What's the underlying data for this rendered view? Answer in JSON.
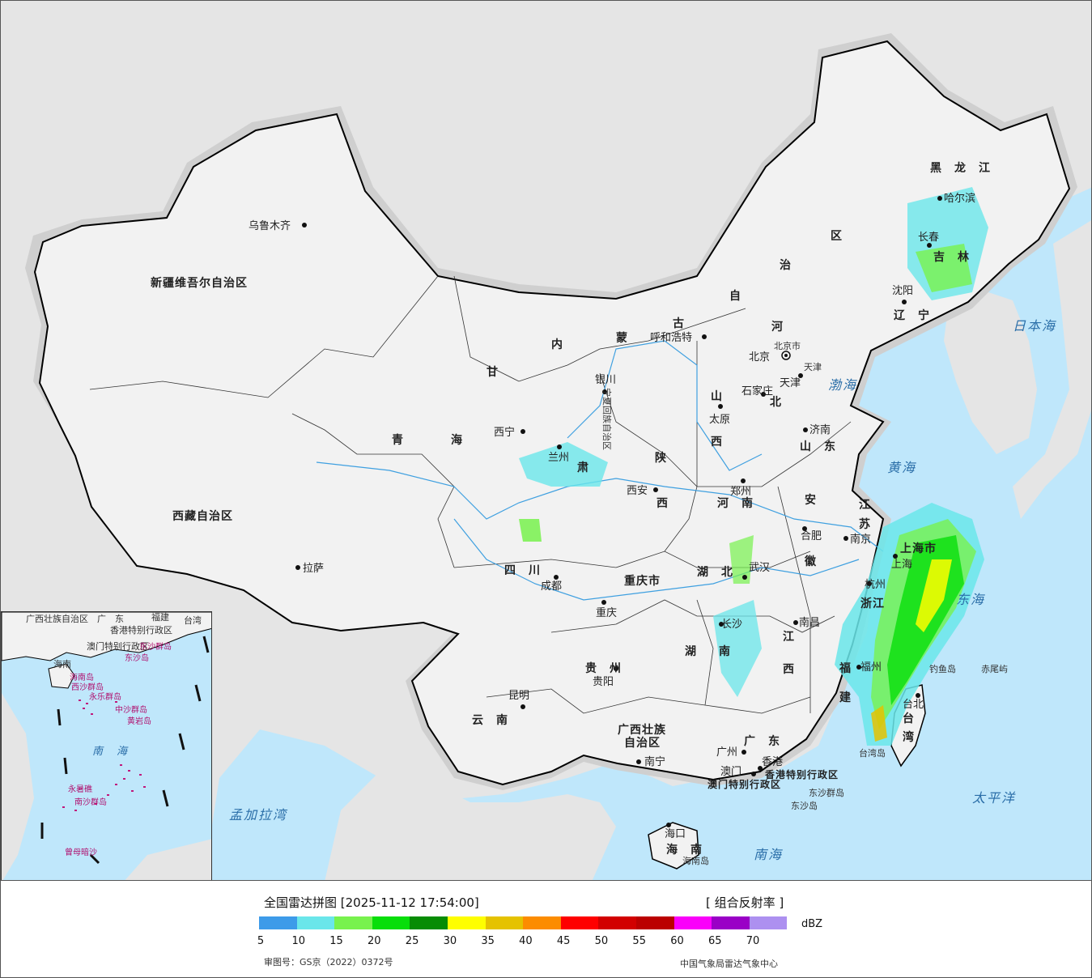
{
  "map": {
    "provinces": {
      "xinjiang": "新疆维吾尔自治区",
      "xizang": "西藏自治区",
      "qinghai_1": "青",
      "qinghai_2": "海",
      "gansu_1": "甘",
      "gansu_2": "肃",
      "neimenggu_1": "内",
      "neimenggu_2": "蒙",
      "neimenggu_3": "古",
      "neimenggu_4": "自",
      "neimenggu_5": "治",
      "neimenggu_6": "区",
      "heilongjiang": "黑　龙　江",
      "jilin": "吉　林",
      "liaoning": "辽　宁",
      "hebei_1": "河",
      "hebei_2": "北",
      "shanxi_1": "山",
      "shanxi_2": "西",
      "shandong": "山　东",
      "henan": "河　南",
      "shaanxi_1": "陕",
      "shaanxi_2": "西",
      "ningxia": "宁夏回族自治区",
      "sichuan": "四　川",
      "chongqing": "重庆市",
      "hubei": "湖　北",
      "hunan_1": "湖",
      "hunan_2": "南",
      "jiangxi_1": "江",
      "jiangxi_2": "西",
      "anhui_1": "安",
      "anhui_2": "徽",
      "jiangsu_1": "江",
      "jiangsu_2": "苏",
      "zhejiang": "浙江",
      "fujian_1": "福",
      "fujian_2": "建",
      "guizhou": "贵　州",
      "yunnan": "云　南",
      "guangxi_1": "广西壮族",
      "guangxi_2": "自治区",
      "guangdong": "广　东",
      "hainan": "海　南",
      "taiwan_1": "台",
      "taiwan_2": "湾",
      "shanghai": "上海市",
      "beijing": "北京市",
      "tianjin": "天津",
      "hongkong": "香港特别行政区",
      "macau": "澳门特别行政区"
    },
    "cities": {
      "urumqi": "乌鲁木齐",
      "lhasa": "拉萨",
      "xining": "西宁",
      "lanzhou": "兰州",
      "yinchuan": "银川",
      "hohhot": "呼和浩特",
      "beijing": "北京",
      "tianjin": "天津",
      "shijiazhuang": "石家庄",
      "taiyuan": "太原",
      "jinan": "济南",
      "zhengzhou": "郑州",
      "xian": "西安",
      "chengdu": "成都",
      "chongqing": "重庆",
      "wuhan": "武汉",
      "hefei": "合肥",
      "nanjing": "南京",
      "shanghai": "上海",
      "hangzhou": "杭州",
      "nanchang": "南昌",
      "changsha": "长沙",
      "guiyang": "贵阳",
      "kunming": "昆明",
      "nanning": "南宁",
      "guangzhou": "广州",
      "hongkong": "香港",
      "macau": "澳门",
      "fuzhou": "福州",
      "taibei": "台北",
      "haikou": "海口",
      "harbin": "哈尔滨",
      "changchun": "长春",
      "shenyang": "沈阳"
    },
    "seas": {
      "japan_sea": "日本海",
      "bohai": "渤海",
      "yellow_sea": "黄海",
      "east_sea": "东海",
      "pacific": "太平洋",
      "south_sea": "南海",
      "bengal": "孟加拉湾"
    },
    "islands": {
      "diaoyu": "钓鱼岛",
      "chiwei": "赤尾屿",
      "dongsha_islands": "东沙群岛",
      "dongsha_island": "东沙岛",
      "hainan_island": "海南岛",
      "taiwan_island": "台湾岛"
    }
  },
  "inset": {
    "labels": {
      "guangxi": "广西壮族自治区",
      "guangdong": "广　东",
      "fujian": "福建",
      "taiwan": "台湾",
      "hongkong": "香港特别行政区",
      "macau": "澳门特别行政区",
      "dongsha": "东沙群岛",
      "dongsha_island": "东沙岛",
      "hainan": "海南",
      "hainan_island": "海南岛",
      "xisha": "西沙群岛",
      "yongle": "永乐群岛",
      "zhongsha": "中沙群岛",
      "huangyan": "黄岩岛",
      "south_sea": "南　海",
      "yongshu": "永暑礁",
      "nansha": "南沙群岛",
      "zengmu": "曾母暗沙"
    }
  },
  "legend": {
    "title": "全国雷达拼图 [2025-11-12 17:54:00]",
    "product": "[ 组合反射率 ]",
    "unit": "dBZ",
    "ticks": [
      "5",
      "10",
      "15",
      "20",
      "25",
      "30",
      "35",
      "40",
      "45",
      "50",
      "55",
      "60",
      "65",
      "70"
    ],
    "colors": [
      "#3d9be9",
      "#6ae6ea",
      "#78f24e",
      "#08de0a",
      "#078c04",
      "#fefe00",
      "#e5c200",
      "#fc8c00",
      "#fe0000",
      "#d20000",
      "#bb0000",
      "#fa00fa",
      "#9a00c6",
      "#ad90f0"
    ],
    "approval": "审图号：GS京（2022）0372号",
    "credit": "中国气象局雷达气象中心"
  },
  "colors": {
    "land_china": "#f2f2f2",
    "land_other": "#e5e5e5",
    "sea": "#bfe7fb",
    "border": "#000000",
    "river": "#3fa0e0"
  }
}
